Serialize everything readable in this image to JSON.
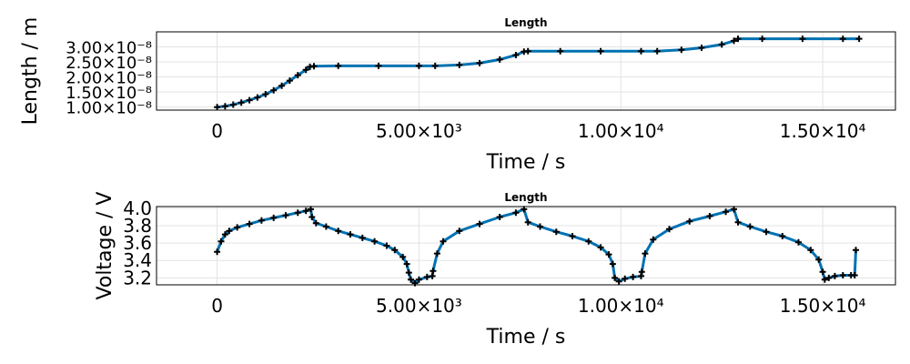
{
  "chart_data": [
    {
      "type": "line",
      "title": "Length",
      "xlabel": "Time / s",
      "ylabel": "Length / m",
      "xlim": [
        -1500,
        16800
      ],
      "ylim": [
        9e-09,
        3.5e-08
      ],
      "xticks": [
        {
          "value": 0,
          "label": "0"
        },
        {
          "value": 5000,
          "label": "5.00×10³"
        },
        {
          "value": 10000,
          "label": "1.00×10⁴"
        },
        {
          "value": 15000,
          "label": "1.50×10⁴"
        }
      ],
      "yticks": [
        {
          "value": 1e-08,
          "label": "1.00×10⁻⁸"
        },
        {
          "value": 1.5e-08,
          "label": "1.50×10⁻⁸"
        },
        {
          "value": 2e-08,
          "label": "2.00×10⁻⁸"
        },
        {
          "value": 2.5e-08,
          "label": "2.50×10⁻⁸"
        },
        {
          "value": 3e-08,
          "label": "3.00×10⁻⁸"
        }
      ],
      "grid": true,
      "marker": "+",
      "line_color": "#0072b2",
      "marker_color": "#000000",
      "series": [
        {
          "x": [
            0,
            200,
            400,
            600,
            800,
            1000,
            1200,
            1400,
            1600,
            1800,
            2000,
            2200,
            2300,
            2400,
            3000,
            4000,
            5000,
            5400,
            6000,
            6500,
            7000,
            7400,
            7600,
            7700,
            8500,
            9500,
            10500,
            10900,
            11500,
            12000,
            12500,
            12800,
            12900,
            13500,
            14500,
            15500,
            15900
          ],
          "y": [
            1e-08,
            1.03e-08,
            1.08e-08,
            1.15e-08,
            1.23e-08,
            1.32e-08,
            1.43e-08,
            1.56e-08,
            1.71e-08,
            1.88e-08,
            2.06e-08,
            2.24e-08,
            2.34e-08,
            2.36e-08,
            2.37e-08,
            2.37e-08,
            2.37e-08,
            2.37e-08,
            2.4e-08,
            2.46e-08,
            2.58e-08,
            2.73e-08,
            2.84e-08,
            2.86e-08,
            2.86e-08,
            2.86e-08,
            2.86e-08,
            2.86e-08,
            2.9e-08,
            2.97e-08,
            3.08e-08,
            3.2e-08,
            3.27e-08,
            3.27e-08,
            3.27e-08,
            3.27e-08,
            3.27e-08
          ]
        }
      ]
    },
    {
      "type": "line",
      "title": "Length",
      "xlabel": "Time / s",
      "ylabel": "Voltage / V",
      "xlim": [
        -1500,
        16800
      ],
      "ylim": [
        3.12,
        4.02
      ],
      "xticks": [
        {
          "value": 0,
          "label": "0"
        },
        {
          "value": 5000,
          "label": "5.00×10³"
        },
        {
          "value": 10000,
          "label": "1.00×10⁴"
        },
        {
          "value": 15000,
          "label": "1.50×10⁴"
        }
      ],
      "yticks": [
        {
          "value": 3.2,
          "label": "3.2"
        },
        {
          "value": 3.4,
          "label": "3.4"
        },
        {
          "value": 3.6,
          "label": "3.6"
        },
        {
          "value": 3.8,
          "label": "3.8"
        },
        {
          "value": 4.0,
          "label": "4.0"
        }
      ],
      "grid": true,
      "marker": "+",
      "line_color": "#0072b2",
      "marker_color": "#000000",
      "series": [
        {
          "x": [
            0,
            100,
            200,
            300,
            500,
            800,
            1100,
            1400,
            1700,
            2000,
            2200,
            2320,
            2350,
            2450,
            2700,
            3000,
            3300,
            3600,
            3900,
            4200,
            4400,
            4600,
            4700,
            4750,
            4800,
            4900,
            5000,
            5200,
            5330,
            5350,
            5450,
            5600,
            6000,
            6500,
            7000,
            7400,
            7600,
            7700,
            8000,
            8400,
            8800,
            9200,
            9500,
            9700,
            9800,
            9850,
            9950,
            10100,
            10300,
            10500,
            10520,
            10600,
            10800,
            11200,
            11700,
            12200,
            12600,
            12800,
            12900,
            13200,
            13600,
            14000,
            14400,
            14700,
            14900,
            15000,
            15050,
            15150,
            15300,
            15500,
            15700,
            15790,
            15820
          ],
          "y": [
            3.5,
            3.62,
            3.7,
            3.74,
            3.78,
            3.82,
            3.86,
            3.89,
            3.92,
            3.95,
            3.97,
            3.99,
            3.9,
            3.83,
            3.79,
            3.74,
            3.7,
            3.66,
            3.62,
            3.57,
            3.52,
            3.44,
            3.36,
            3.26,
            3.18,
            3.14,
            3.18,
            3.21,
            3.22,
            3.28,
            3.48,
            3.62,
            3.74,
            3.82,
            3.9,
            3.95,
            3.99,
            3.84,
            3.79,
            3.73,
            3.68,
            3.62,
            3.55,
            3.47,
            3.36,
            3.2,
            3.16,
            3.19,
            3.21,
            3.22,
            3.27,
            3.48,
            3.64,
            3.76,
            3.85,
            3.91,
            3.96,
            3.99,
            3.84,
            3.79,
            3.73,
            3.68,
            3.61,
            3.52,
            3.41,
            3.27,
            3.18,
            3.2,
            3.22,
            3.23,
            3.23,
            3.23,
            3.52
          ]
        }
      ]
    }
  ]
}
